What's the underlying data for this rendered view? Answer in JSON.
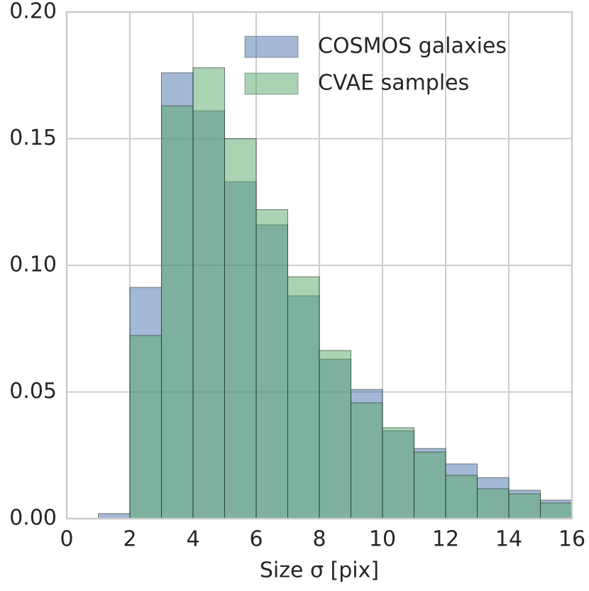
{
  "chart_data": {
    "type": "histogram",
    "xlabel": "Size σ [pix]",
    "bins": [
      0,
      1,
      2,
      3,
      4,
      5,
      6,
      7,
      8,
      9,
      10,
      11,
      12,
      13,
      14,
      15,
      16
    ],
    "series": [
      {
        "name": "COSMOS galaxies",
        "color": "#4c72b0",
        "values": [
          0,
          0.002,
          0.0913,
          0.176,
          0.161,
          0.133,
          0.116,
          0.088,
          0.063,
          0.051,
          0.0347,
          0.0277,
          0.0216,
          0.0162,
          0.0112,
          0.0073
        ]
      },
      {
        "name": "CVAE samples",
        "color": "#55a868",
        "values": [
          0,
          0,
          0.0723,
          0.163,
          0.178,
          0.15,
          0.122,
          0.0955,
          0.0664,
          0.0457,
          0.0359,
          0.0263,
          0.0171,
          0.0118,
          0.0098,
          0.0062
        ]
      }
    ],
    "xlim": [
      0,
      16
    ],
    "ylim": [
      0,
      0.2
    ],
    "xticks": [
      0,
      2,
      4,
      6,
      8,
      10,
      12,
      14,
      16
    ],
    "yticks": [
      {
        "value": 0,
        "label": "0.00"
      },
      0.05,
      {
        "value": 0.1,
        "label": "0.10"
      },
      0.15,
      {
        "value": 0.2,
        "label": "0.20"
      }
    ],
    "grid": true,
    "legend": "upper right"
  }
}
